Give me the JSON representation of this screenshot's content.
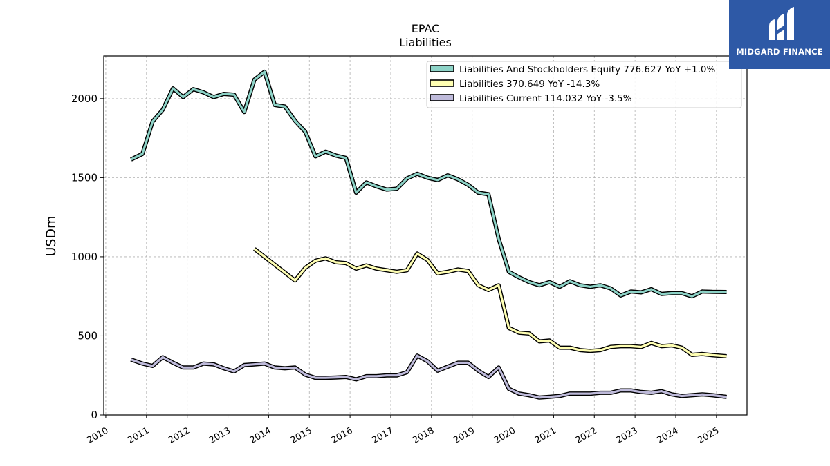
{
  "chart_data": {
    "type": "line",
    "title": "EPAC",
    "subtitle": "Liabilities",
    "xlabel": "",
    "ylabel": "USDm",
    "xlim": [
      2009.95,
      2025.75
    ],
    "ylim": [
      0,
      2270
    ],
    "yticks": [
      0,
      500,
      1000,
      1500,
      2000
    ],
    "xticks": [
      "2010",
      "2011",
      "2012",
      "2013",
      "2014",
      "2015",
      "2016",
      "2017",
      "2018",
      "2019",
      "2020",
      "2021",
      "2022",
      "2023",
      "2024",
      "2025"
    ],
    "grid": true,
    "legend_position": "top-right",
    "series": [
      {
        "name": "Liabilities And Stockholders Equity",
        "legend_label": "Liabilities And Stockholders Equity  776.627 YoY +1.0%",
        "color": "#8dd3c7",
        "x": [
          2010.62,
          2010.9,
          2011.15,
          2011.4,
          2011.65,
          2011.9,
          2012.15,
          2012.4,
          2012.65,
          2012.9,
          2013.15,
          2013.4,
          2013.65,
          2013.9,
          2014.15,
          2014.4,
          2014.65,
          2014.9,
          2015.15,
          2015.4,
          2015.65,
          2015.9,
          2016.15,
          2016.4,
          2016.65,
          2016.9,
          2017.15,
          2017.4,
          2017.65,
          2017.9,
          2018.15,
          2018.4,
          2018.65,
          2018.9,
          2019.15,
          2019.4,
          2019.65,
          2019.9,
          2020.15,
          2020.4,
          2020.65,
          2020.9,
          2021.15,
          2021.4,
          2021.65,
          2021.9,
          2022.15,
          2022.4,
          2022.65,
          2022.9,
          2023.15,
          2023.4,
          2023.65,
          2023.9,
          2024.15,
          2024.4,
          2024.65,
          2024.9,
          2025.25
        ],
        "values": [
          1615,
          1650,
          1855,
          1930,
          2065,
          2010,
          2060,
          2040,
          2010,
          2030,
          2025,
          1915,
          2120,
          2170,
          1960,
          1950,
          1860,
          1790,
          1635,
          1665,
          1640,
          1625,
          1405,
          1470,
          1445,
          1425,
          1430,
          1495,
          1525,
          1500,
          1485,
          1515,
          1490,
          1455,
          1405,
          1395,
          1115,
          905,
          870,
          840,
          820,
          840,
          810,
          845,
          820,
          810,
          820,
          800,
          755,
          780,
          775,
          795,
          765,
          770,
          770,
          750,
          780,
          778,
          777
        ]
      },
      {
        "name": "Liabilities",
        "legend_label": "Liabilities  370.649 YoY -14.3%",
        "color": "#ffffb3",
        "x": [
          2013.65,
          2014.65,
          2014.9,
          2015.15,
          2015.4,
          2015.65,
          2015.9,
          2016.15,
          2016.4,
          2016.65,
          2016.9,
          2017.15,
          2017.4,
          2017.65,
          2017.9,
          2018.15,
          2018.4,
          2018.65,
          2018.9,
          2019.15,
          2019.4,
          2019.65,
          2019.9,
          2020.15,
          2020.4,
          2020.65,
          2020.9,
          2021.15,
          2021.4,
          2021.65,
          2021.9,
          2022.15,
          2022.4,
          2022.65,
          2022.9,
          2023.15,
          2023.4,
          2023.65,
          2023.9,
          2024.15,
          2024.4,
          2024.65,
          2024.9,
          2025.25
        ],
        "values": [
          1050,
          850,
          930,
          975,
          990,
          965,
          960,
          925,
          945,
          925,
          915,
          905,
          915,
          1020,
          980,
          895,
          905,
          920,
          910,
          820,
          790,
          820,
          550,
          520,
          515,
          465,
          470,
          425,
          425,
          410,
          405,
          410,
          430,
          435,
          435,
          430,
          455,
          435,
          440,
          425,
          380,
          385,
          378,
          371
        ]
      },
      {
        "name": "Liabilities Current",
        "legend_label": "Liabilities Current  114.032 YoY -3.5%",
        "color": "#bebada",
        "x": [
          2010.62,
          2010.9,
          2011.15,
          2011.4,
          2011.65,
          2011.9,
          2012.15,
          2012.4,
          2012.65,
          2012.9,
          2013.15,
          2013.4,
          2013.65,
          2013.9,
          2014.15,
          2014.4,
          2014.65,
          2014.9,
          2015.15,
          2015.4,
          2015.65,
          2015.9,
          2016.15,
          2016.4,
          2016.65,
          2016.9,
          2017.15,
          2017.4,
          2017.65,
          2017.9,
          2018.15,
          2018.4,
          2018.65,
          2018.9,
          2019.15,
          2019.4,
          2019.65,
          2019.9,
          2020.15,
          2020.4,
          2020.65,
          2020.9,
          2021.15,
          2021.4,
          2021.65,
          2021.9,
          2022.15,
          2022.4,
          2022.65,
          2022.9,
          2023.15,
          2023.4,
          2023.65,
          2023.9,
          2024.15,
          2024.4,
          2024.65,
          2024.9,
          2025.25
        ],
        "values": [
          350,
          325,
          310,
          365,
          330,
          300,
          300,
          325,
          320,
          295,
          275,
          315,
          320,
          325,
          300,
          295,
          300,
          255,
          235,
          235,
          237,
          240,
          225,
          245,
          245,
          250,
          250,
          270,
          375,
          340,
          280,
          305,
          330,
          330,
          280,
          240,
          300,
          165,
          135,
          125,
          110,
          115,
          120,
          135,
          135,
          135,
          140,
          140,
          155,
          155,
          145,
          140,
          150,
          130,
          120,
          125,
          130,
          125,
          114
        ]
      }
    ]
  },
  "logo": {
    "brand": "MIDGARD FINANCE"
  }
}
